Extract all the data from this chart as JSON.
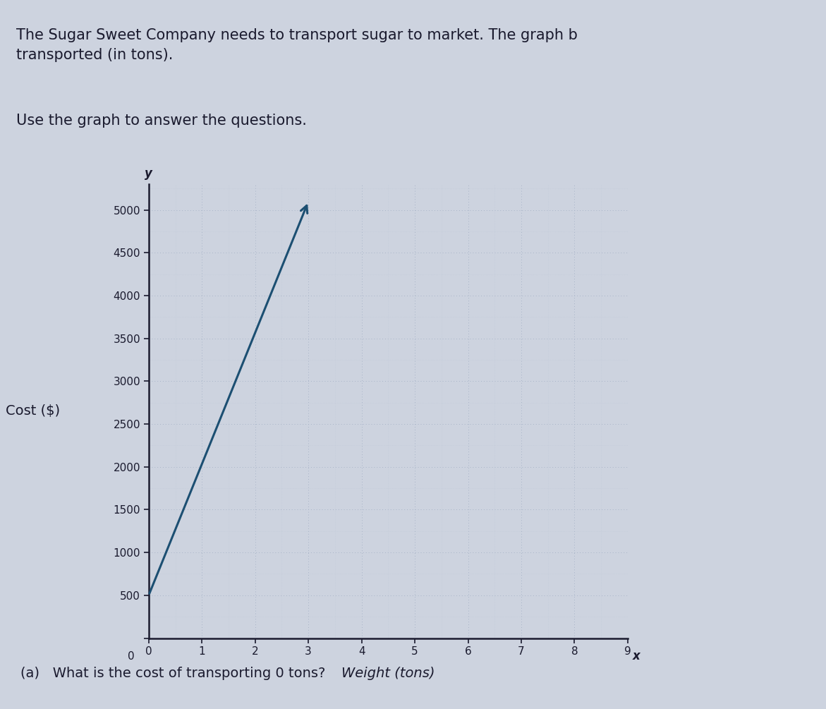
{
  "line_x": [
    0,
    3.0
  ],
  "line_y": [
    500,
    5100
  ],
  "x_min": 0,
  "x_max": 9,
  "y_min": 0,
  "y_max": 5300,
  "x_ticks": [
    0,
    1,
    2,
    3,
    4,
    5,
    6,
    7,
    8,
    9
  ],
  "y_ticks": [
    0,
    500,
    1000,
    1500,
    2000,
    2500,
    3000,
    3500,
    4000,
    4500,
    5000
  ],
  "xlabel": "Weight (tons)",
  "ylabel": "Cost ($)",
  "x_axis_label": "x",
  "y_axis_label": "y",
  "line_color": "#1c4f72",
  "line_width": 2.2,
  "grid_major_color": "#a8b4c8",
  "grid_minor_color": "#b8c4d4",
  "bg_color": "#cdd3df",
  "text_color": "#1a1a2e",
  "title_text": "The Sugar Sweet Company needs to transport sugar to market. The graph b\ntransported (in tons).",
  "subtitle_text": "Use the graph to answer the questions.",
  "question_text": "(a)   What is the cost of transporting 0 tons?",
  "slope": 1533.33,
  "intercept": 500
}
